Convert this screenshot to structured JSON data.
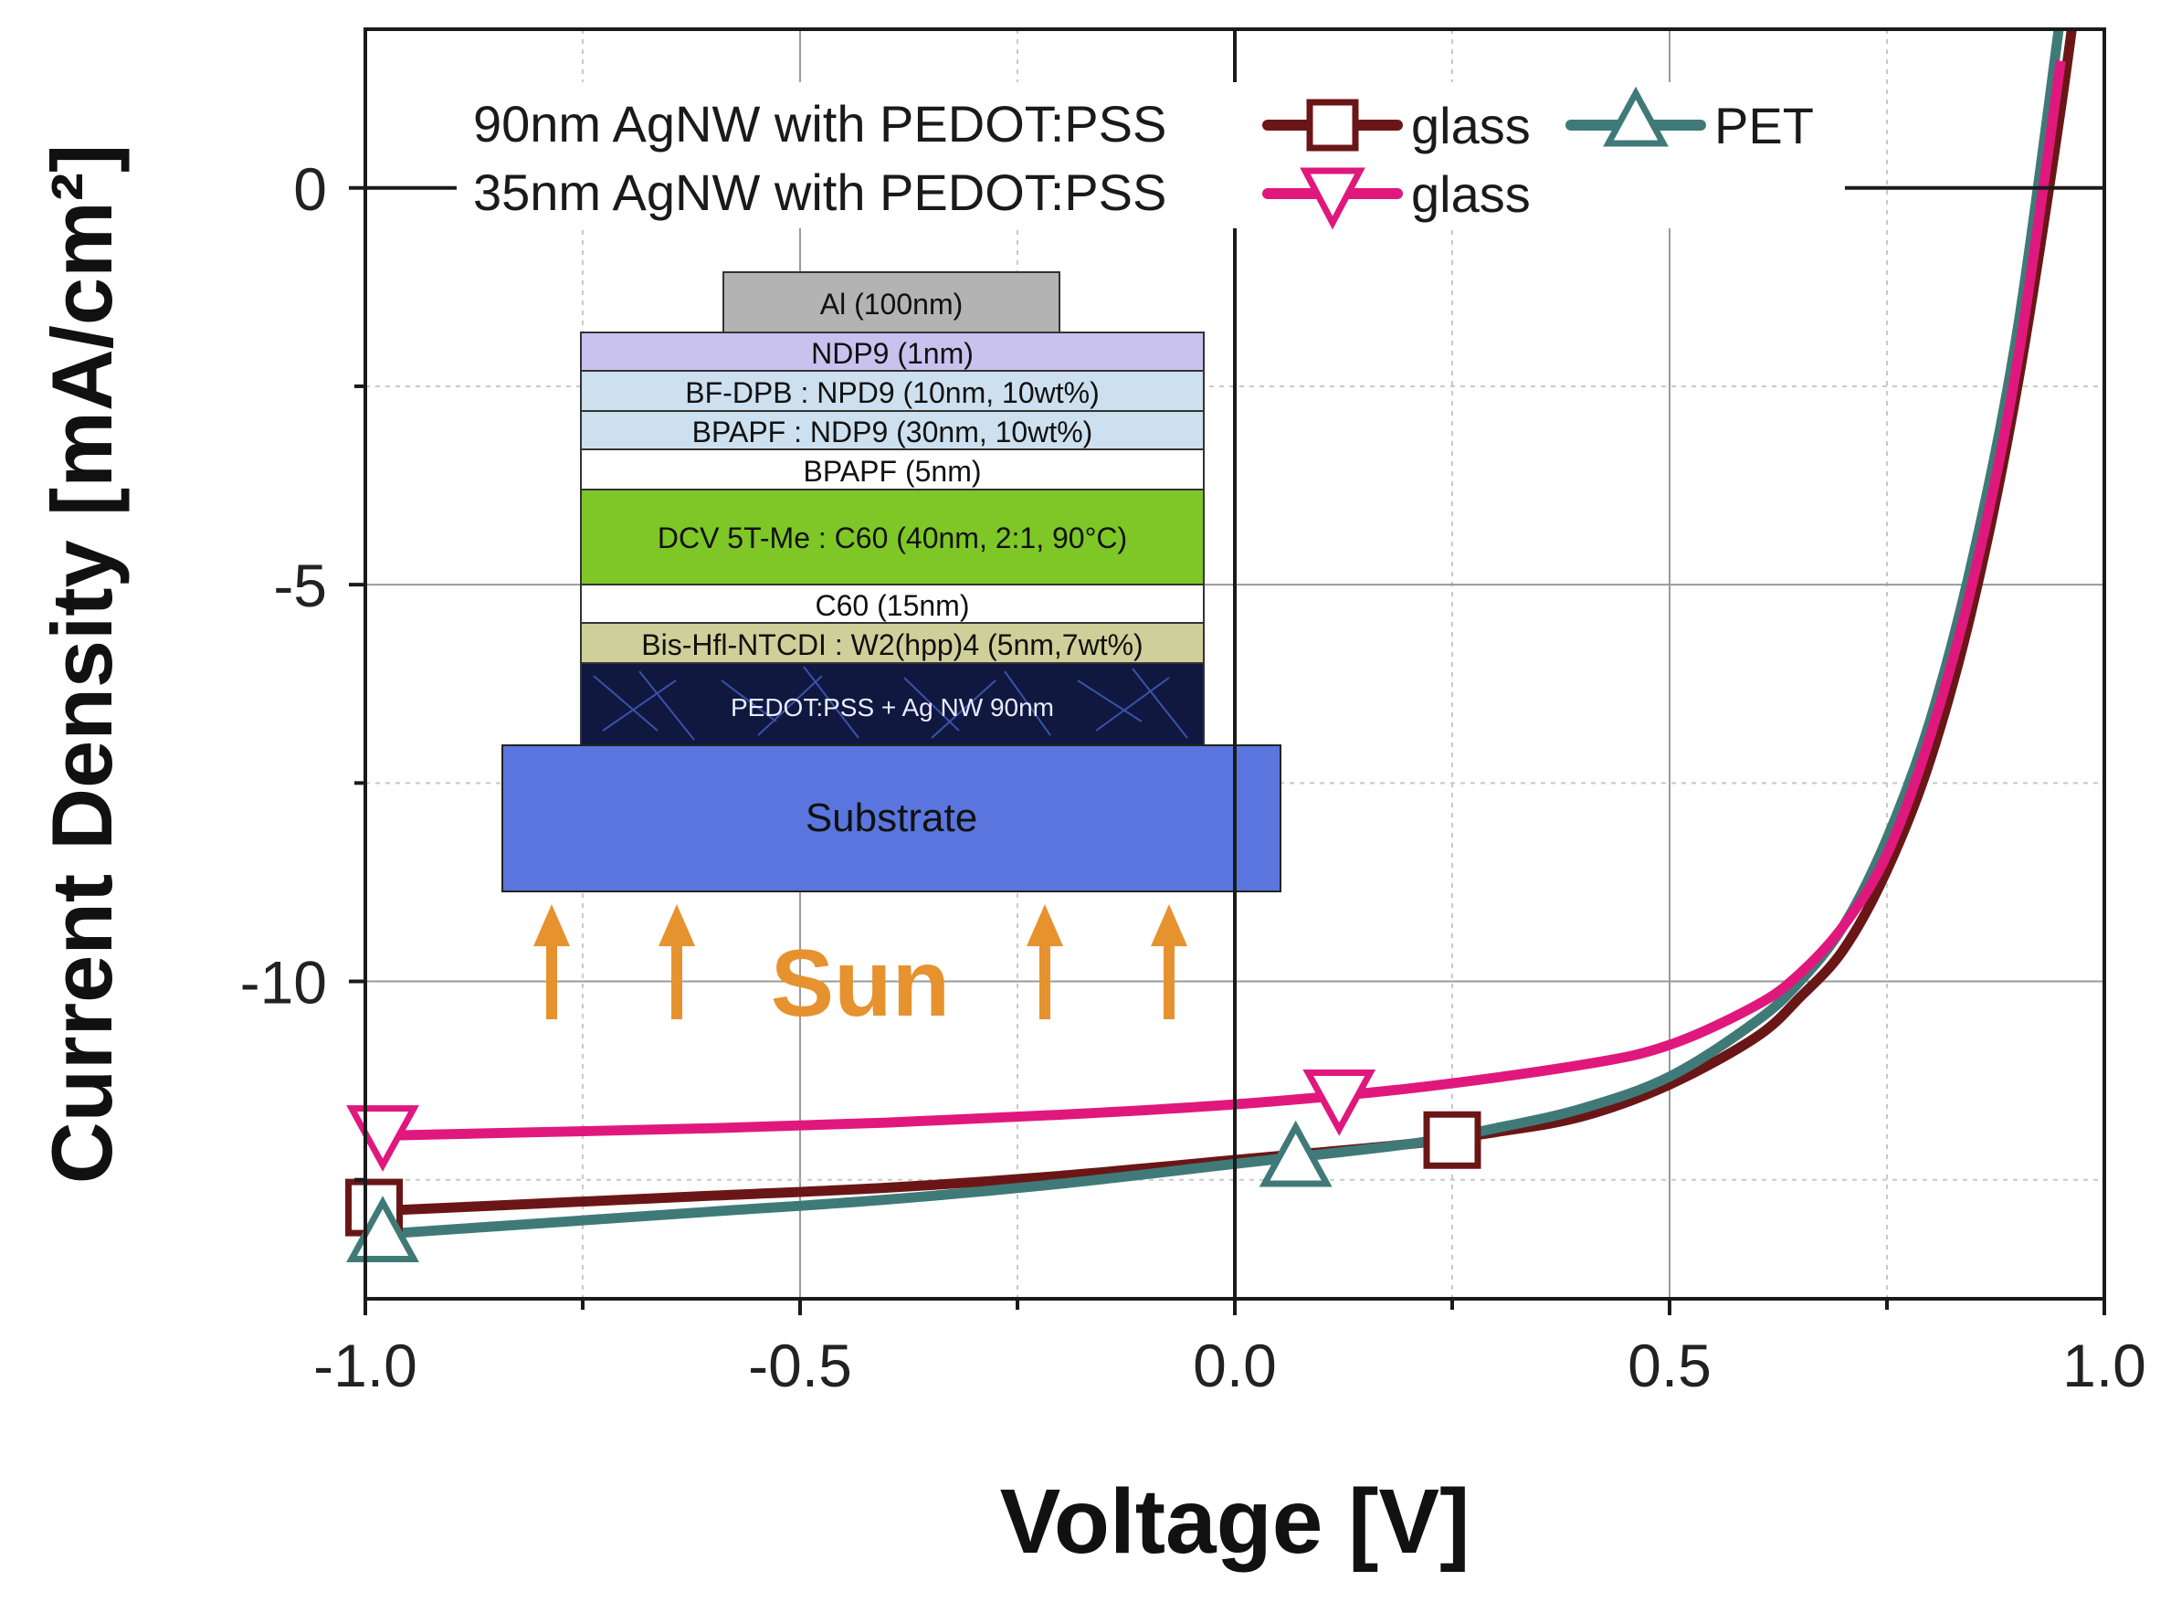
{
  "chart_data": {
    "type": "line",
    "xlabel": "Voltage [V]",
    "ylabel": "Current Density [mA/cm²]",
    "xlim": [
      -1.0,
      1.0
    ],
    "ylim": [
      -14.0,
      2.0
    ],
    "xticks": [
      -1.0,
      -0.5,
      0.0,
      0.5,
      1.0
    ],
    "xtick_labels": [
      "-1.0",
      "-0.5",
      "0.0",
      "0.5",
      "1.0"
    ],
    "yticks": [
      0,
      -5,
      -10
    ],
    "ytick_labels": [
      "0",
      "-5",
      "-10"
    ],
    "grid": true,
    "legend_position": "top",
    "legend": {
      "row1_label": "90nm AgNW with PEDOT:PSS",
      "row2_label": "35nm AgNW with PEDOT:PSS"
    },
    "series": [
      {
        "name": "glass",
        "legend_row": 1,
        "color": "#6b1616",
        "marker": "square",
        "x": [
          -1.0,
          -0.8,
          -0.6,
          -0.4,
          -0.2,
          0.0,
          0.2,
          0.3,
          0.4,
          0.5,
          0.6,
          0.65,
          0.7,
          0.75,
          0.8,
          0.85,
          0.9,
          0.95,
          0.98
        ],
        "y": [
          -12.9,
          -12.8,
          -12.7,
          -12.6,
          -12.45,
          -12.25,
          -12.05,
          -11.9,
          -11.7,
          -11.3,
          -10.7,
          -10.2,
          -9.6,
          -8.6,
          -7.2,
          -5.2,
          -2.5,
          1.0,
          3.5
        ],
        "markers": [
          [
            -0.99,
            -12.85
          ],
          [
            0.25,
            -12.0
          ]
        ]
      },
      {
        "name": "PET",
        "legend_row": 1,
        "color": "#3f7a78",
        "marker": "triangle-up",
        "x": [
          -1.0,
          -0.8,
          -0.6,
          -0.4,
          -0.2,
          0.0,
          0.2,
          0.3,
          0.4,
          0.5,
          0.6,
          0.65,
          0.7,
          0.75,
          0.8,
          0.85,
          0.9,
          0.95
        ],
        "y": [
          -13.2,
          -13.05,
          -12.9,
          -12.75,
          -12.55,
          -12.3,
          -12.05,
          -11.85,
          -11.6,
          -11.2,
          -10.5,
          -10.0,
          -9.3,
          -8.2,
          -6.7,
          -4.6,
          -1.8,
          2.2
        ],
        "markers": [
          [
            -0.98,
            -13.2
          ],
          [
            0.07,
            -12.25
          ]
        ]
      },
      {
        "name": "glass",
        "legend_row": 2,
        "color": "#e0187e",
        "marker": "triangle-down",
        "x": [
          -1.0,
          -0.8,
          -0.6,
          -0.4,
          -0.2,
          0.0,
          0.2,
          0.4,
          0.5,
          0.6,
          0.65,
          0.7,
          0.75,
          0.8,
          0.85,
          0.9,
          0.95
        ],
        "y": [
          -11.95,
          -11.9,
          -11.85,
          -11.78,
          -11.68,
          -11.55,
          -11.35,
          -11.05,
          -10.8,
          -10.3,
          -9.9,
          -9.3,
          -8.4,
          -6.9,
          -4.9,
          -2.2,
          1.6
        ],
        "markers": [
          [
            -0.98,
            -11.9
          ],
          [
            0.12,
            -11.45
          ]
        ]
      }
    ]
  },
  "inset": {
    "layers": [
      {
        "label": "Al (100nm)",
        "fill": "#b3b3b3"
      },
      {
        "label": "NDP9 (1nm)",
        "fill": "#c9c2ef"
      },
      {
        "label": "BF-DPB : NPD9 (10nm, 10wt%)",
        "fill": "#cde0ef"
      },
      {
        "label": "BPAPF : NDP9 (30nm, 10wt%)",
        "fill": "#cde0ef"
      },
      {
        "label": "BPAPF (5nm)",
        "fill": "#ffffff"
      },
      {
        "label": "DCV 5T-Me : C60 (40nm, 2:1, 90°C)",
        "fill": "#7ec726"
      },
      {
        "label": "C60 (15nm)",
        "fill": "#ffffff"
      },
      {
        "label": "Bis-Hfl-NTCDI : W2(hpp)4 (5nm,7wt%)",
        "fill": "#cfcf9a"
      },
      {
        "label": "PEDOT:PSS + Ag NW 90nm",
        "fill": "#101840"
      },
      {
        "label": "Substrate",
        "fill": "#5a76de"
      }
    ],
    "sun_label": "Sun",
    "sun_color": "#e6922f"
  }
}
